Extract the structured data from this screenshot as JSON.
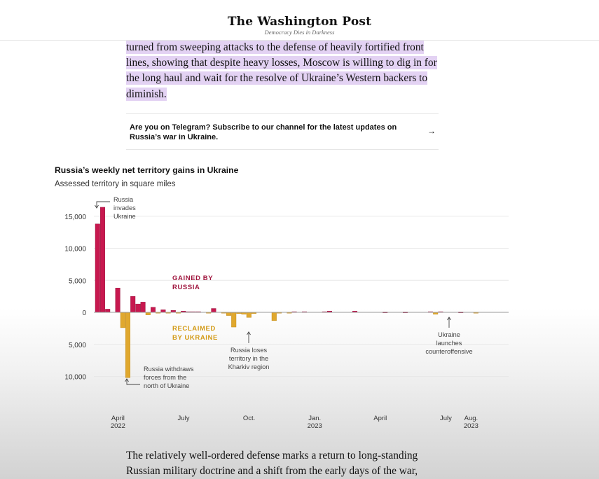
{
  "masthead": {
    "logo": "The Washington Post",
    "tagline": "Democracy Dies in Darkness"
  },
  "article": {
    "highlighted_paragraph": "turned from sweeping attacks to the defense of heavily fortified front lines, showing that despite heavy losses, Moscow is willing to dig in for the long haul and wait for the resolve of Ukraine’s Western backers to diminish.",
    "telegram_promo": "Are you on Telegram? Subscribe to our channel for the latest updates on Russia’s war in Ukraine.",
    "telegram_arrow": "→",
    "closing_paragraph": "The relatively well-ordered defense marks a return to long-standing Russian military doctrine and a shift from the early days of the war,"
  },
  "colors": {
    "gained": "#c7184f",
    "reclaimed": "#e0a82e",
    "gained_label": "#a0173f",
    "reclaimed_label": "#d39b18",
    "grid": "#e8e8e8",
    "zero": "#9a9a9a"
  },
  "chart_data": {
    "type": "bar",
    "title": "Russia’s weekly net territory gains in Ukraine",
    "subtitle": "Assessed territory in square miles",
    "ylabel": "square miles",
    "ylim": [
      -10500,
      17000
    ],
    "yticks": [
      {
        "value": 15000,
        "label": "15,000"
      },
      {
        "value": 10000,
        "label": "10,000"
      },
      {
        "value": 5000,
        "label": "5,000"
      },
      {
        "value": 0,
        "label": "0"
      },
      {
        "value": -5000,
        "label": "5,000"
      },
      {
        "value": -10000,
        "label": "10,000"
      }
    ],
    "x_start_week": 0,
    "x_end_week": 78,
    "xticks": [
      {
        "week": 4,
        "line1": "April",
        "line2": "2022"
      },
      {
        "week": 17,
        "line1": "July",
        "line2": ""
      },
      {
        "week": 30,
        "line1": "Oct.",
        "line2": ""
      },
      {
        "week": 43,
        "line1": "Jan.",
        "line2": "2023"
      },
      {
        "week": 56,
        "line1": "April",
        "line2": ""
      },
      {
        "week": 69,
        "line1": "July",
        "line2": ""
      },
      {
        "week": 74,
        "line1": "Aug.",
        "line2": "2023"
      }
    ],
    "weeks": [
      0,
      1,
      2,
      3,
      4,
      5,
      6,
      7,
      8,
      9,
      10,
      11,
      12,
      13,
      14,
      15,
      16,
      17,
      18,
      19,
      20,
      21,
      22,
      23,
      24,
      25,
      26,
      27,
      28,
      29,
      30,
      31,
      32,
      33,
      34,
      35,
      36,
      37,
      38,
      39,
      40,
      41,
      42,
      43,
      44,
      45,
      46,
      47,
      48,
      49,
      50,
      51,
      52,
      53,
      54,
      55,
      56,
      57,
      58,
      59,
      60,
      61,
      62,
      63,
      64,
      65,
      66,
      67,
      68,
      69,
      70,
      71,
      72,
      73,
      74,
      75,
      76,
      77
    ],
    "values": [
      13800,
      16400,
      500,
      0,
      3800,
      -2400,
      -10200,
      2500,
      1300,
      1600,
      -400,
      800,
      -100,
      400,
      -100,
      300,
      -100,
      200,
      100,
      100,
      100,
      0,
      -100,
      600,
      0,
      -100,
      -500,
      -2300,
      -200,
      -300,
      -800,
      -200,
      0,
      0,
      0,
      -1300,
      -100,
      0,
      -50,
      100,
      0,
      100,
      0,
      0,
      0,
      100,
      200,
      0,
      0,
      0,
      0,
      200,
      0,
      0,
      0,
      0,
      0,
      50,
      0,
      0,
      0,
      50,
      0,
      0,
      0,
      0,
      100,
      -300,
      100,
      0,
      0,
      0,
      50,
      0,
      0,
      -100,
      0,
      0
    ],
    "series": [
      {
        "name": "GAINED BY RUSSIA",
        "line1": "GAINED BY",
        "line2": "RUSSIA"
      },
      {
        "name": "RECLAIMED BY UKRAINE",
        "line1": "RECLAIMED",
        "line2": "BY UKRAINE"
      }
    ],
    "annotations": [
      {
        "lines": [
          "Russia",
          "invades",
          "Ukraine"
        ]
      },
      {
        "lines": [
          "Russia withdraws",
          "forces from the",
          "north of Ukraine"
        ]
      },
      {
        "lines": [
          "Russia loses",
          "territory in the",
          "Kharkiv region"
        ]
      },
      {
        "lines": [
          "Ukraine",
          "launches",
          "counteroffensive"
        ]
      }
    ]
  }
}
